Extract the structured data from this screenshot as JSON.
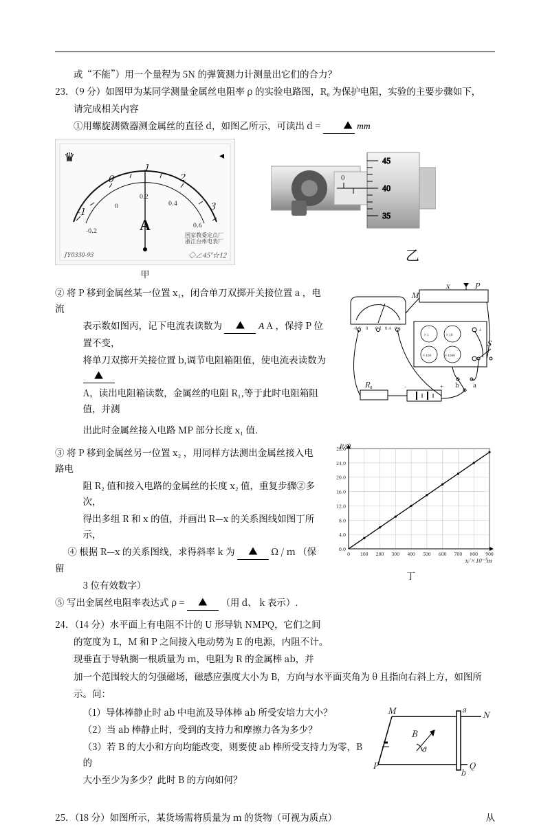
{
  "top_line": "或“不能”）用一个量程为 5N 的弹簧测力计测量出它们的合力？",
  "q23": {
    "head": "23．（9 分）如图甲为某同学测量金属丝电阻率 ρ 的实验电路图，R₀ 为保护电阻，实验的主要步骤如下，",
    "head2": "请完成相关内容",
    "step1_pre": "①用螺旋测微器测金属丝的直径 d，如图乙所示，可读出 d =",
    "step1_unit": "mm",
    "ammeter": {
      "outer_ticks": [
        "-1",
        "0",
        "1",
        "2",
        "3"
      ],
      "inner_ticks": [
        "-0.2",
        "0",
        "0.2",
        "0.4",
        "0.6"
      ],
      "unit": "A",
      "brand1": "国家教委定点厂",
      "brand2": "浙江台州电表厂",
      "model": "JY0330-93",
      "marks": "◇∠45°☆12",
      "caption": "甲"
    },
    "micrometer": {
      "sleeve_label": "0",
      "thimble_ticks": [
        "45",
        "40",
        "35"
      ],
      "caption": "乙"
    },
    "step2_l1": "② 将 P 移到金属丝某一位置 x₁，闭合单刀双掷开关接位置 a ，电流",
    "step2_l2_pre": "表示数如图丙，记下电流表读数为",
    "step2_l2_mid": "A ，保持 P 位置不变，",
    "step2_l3_pre": "将单刀双掷开关接位置 b,调节电阻箱阻值，使电流表读数为",
    "step2_l4": "A，读出电阻箱读数，金属丝的电阻 R₁,等于此时电阻箱阻值，并测",
    "step2_l5": "出此时金属丝接入电路 MP 部分长度 x₁ 值.",
    "circuit": {
      "labels": {
        "M": "M",
        "x": "x",
        "P": "P",
        "R0": "R₀",
        "S": "S",
        "a": "a",
        "b": "b"
      },
      "dial_ticks": [
        "-0.2",
        "0",
        "0.2",
        "0.4",
        "0.6"
      ],
      "box_scales": [
        "×1",
        "×10",
        "×100",
        "×1000"
      ]
    },
    "step3": "③ 将 P 移到金属丝另一位置 x₂ ，用同样方法测出金属丝接入电路电",
    "step3b": "阻 R₂ 值和接入电路的金属丝的长度 x₂ 值，重复步骤②多次，",
    "step3c": "得出多组 R 和 x 的值，并画出 R—x 的关系图线如图丁所示，",
    "step4_pre": "④ 根据 R—x 的关系图线，求得斜率 k 为",
    "step4_post": "Ω / m （保留",
    "step4_post2": "3 位有效数字）",
    "step5_pre": "⑤ 写出金属丝电阻率表达式 ρ =",
    "step5_post": "（用 d、 k 表示）.",
    "chart": {
      "type": "line",
      "xlabel": "x/×10⁻³m",
      "ylabel": "R/Ω",
      "xlim": [
        0,
        900
      ],
      "xtick_step": 100,
      "ylim": [
        0,
        28
      ],
      "ytick_step": 4,
      "data_x": [
        100,
        200,
        300,
        400,
        500,
        600,
        700,
        800,
        900
      ],
      "data_y": [
        3.0,
        6.0,
        9.0,
        12.0,
        15.0,
        18.0,
        21.0,
        24.0,
        27.0
      ],
      "grid_color": "#c0c0c0",
      "line_color": "#000000",
      "caption": "丁"
    }
  },
  "q24": {
    "head": "24．（14 分）水平面上有电阻不计的 U 形导轨 NMPQ，它们之间",
    "l2": "的宽度为 L，M 和 P 之间接入电动势为 E 的电源，内阻不计。",
    "l3": "现垂直于导轨搁一根质量为 m，电阻为 R 的金属棒 ab，并",
    "l4": "加一个范围较大的匀强磁场，磁感应强度大小为 B，方向与水平面夹角为 θ 且指向右斜上方，如图所",
    "l5": "示。问：",
    "s1": "（1）导体棒静止时 ab 中电流及导体棒 ab 所受安培力大小？",
    "s2": "（2）当 ab 棒静止时，受到的支持力和摩擦力各为多少？",
    "s3": "（3）若 B 的大小和方向均能改变，则要使 ab 棒所受支持力为零，B 的",
    "s3b": "大小至少为多少？此时 B 的方向如何？",
    "diagram": {
      "M": "M",
      "N": "N",
      "P": "P",
      "Q": "Q",
      "a": "a",
      "b": "b",
      "B": "B",
      "theta": "ϑ"
    }
  },
  "q25": {
    "head_l": "25．（18 分）如图所示，某货场需将质量为 m 的货物（可视为质点）",
    "head_r": "从"
  }
}
